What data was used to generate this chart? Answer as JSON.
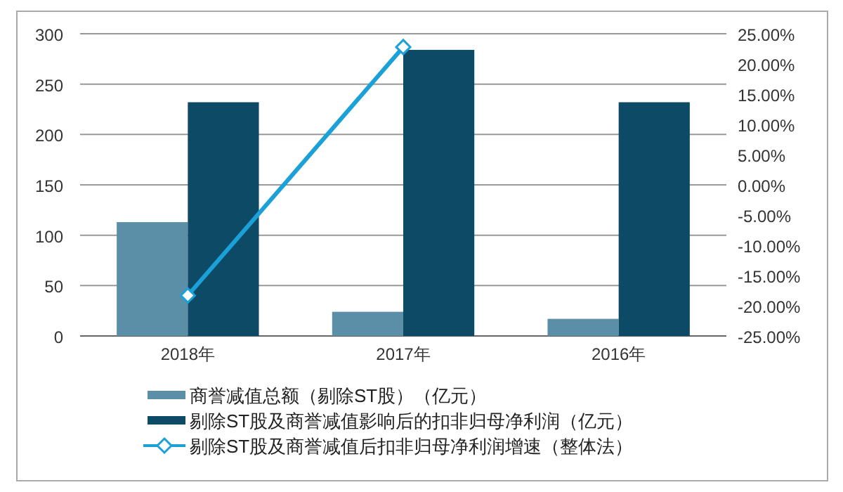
{
  "chart_data": {
    "type": "bar",
    "categories": [
      "2018年",
      "2017年",
      "2016年"
    ],
    "series": [
      {
        "name": "商誉减值总额（剔除ST股）（亿元）",
        "color": "#5b8fa8",
        "values": [
          113,
          24,
          17
        ]
      },
      {
        "name": "剔除ST股及商誉减值影响后的扣非归母净利润（亿元）",
        "color": "#0d4a66",
        "values": [
          232,
          284,
          232
        ]
      },
      {
        "name": "剔除ST股及商誉减值后扣非归母净利润增速（整体法）",
        "color": "#1ba1d8",
        "type": "line",
        "axis": "y2",
        "marker": "diamond",
        "values": [
          -18.3,
          22.8,
          null
        ]
      }
    ],
    "ylim": [
      0,
      300
    ],
    "yticks": [
      0,
      50,
      100,
      150,
      200,
      250,
      300
    ],
    "y2lim": [
      -25,
      25
    ],
    "y2ticks": [
      {
        "value": -25,
        "label": "-25.00%"
      },
      {
        "value": -20,
        "label": "-20.00%"
      },
      {
        "value": -15,
        "label": "-15.00%"
      },
      {
        "value": -10,
        "label": "-10.00%"
      },
      {
        "value": -5,
        "label": "-5.00%"
      },
      {
        "value": 0,
        "label": "0.00%"
      },
      {
        "value": 5,
        "label": "5.00%"
      },
      {
        "value": 10,
        "label": "10.00%"
      },
      {
        "value": 15,
        "label": "15.00%"
      },
      {
        "value": 20,
        "label": "20.00%"
      },
      {
        "value": 25,
        "label": "25.00%"
      }
    ],
    "grid": "y",
    "legend": "bottom"
  }
}
